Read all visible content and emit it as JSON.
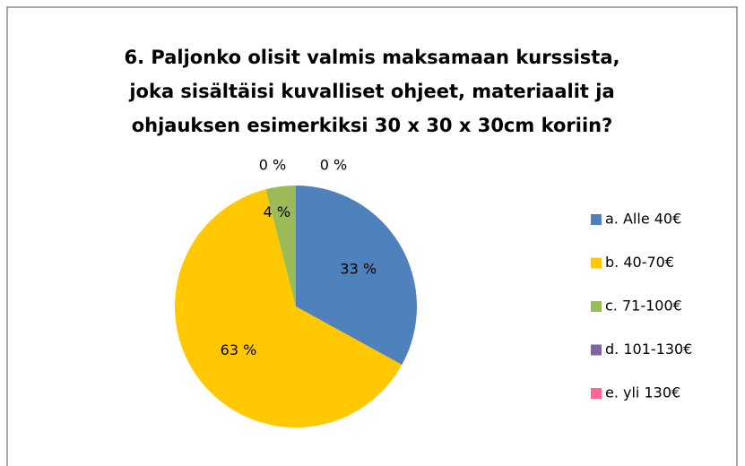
{
  "chart_data": {
    "type": "pie",
    "title": [
      "6. Paljonko olisit valmis maksamaan kurssista,",
      "joka sisältäisi kuvalliset ohjeet, materiaalit ja",
      "ohjauksen esimerkiksi 30 x 30 x 30cm koriin?"
    ],
    "categories": [
      "a. Alle 40€",
      "b. 40-70€",
      "c. 71-100€",
      "d. 101-130€",
      "e. yli 130€"
    ],
    "values": [
      33,
      63,
      4,
      0,
      0
    ],
    "value_labels": [
      "33 %",
      "63 %",
      "4 %",
      "0 %",
      "0 %"
    ],
    "colors": [
      "#4f81bd",
      "#ffc800",
      "#9bbb59",
      "#8064a2",
      "#ff6699"
    ]
  }
}
